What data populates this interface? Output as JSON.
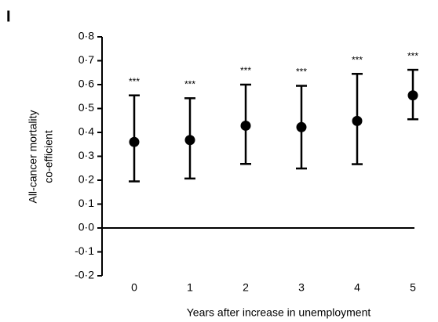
{
  "chart_data": {
    "type": "errorbar",
    "panel_label": "I",
    "ylabel": [
      "All-cancer mortality",
      "co-efficient"
    ],
    "xlabel": "Years after increase in unemployment",
    "categories": [
      "0",
      "1",
      "2",
      "3",
      "4",
      "5"
    ],
    "values": [
      0.36,
      0.368,
      0.428,
      0.422,
      0.448,
      0.555
    ],
    "lower": [
      0.195,
      0.207,
      0.268,
      0.249,
      0.267,
      0.455
    ],
    "upper": [
      0.555,
      0.543,
      0.6,
      0.595,
      0.645,
      0.662
    ],
    "annotations": [
      "***",
      "***",
      "***",
      "***",
      "***",
      "***"
    ],
    "color": "#000000",
    "ylim": [
      -0.2,
      0.8
    ],
    "yticks": [
      {
        "value": -0.2,
        "label": "-0·2"
      },
      {
        "value": -0.1,
        "label": "-0·1"
      },
      {
        "value": 0,
        "label": "0·0"
      },
      {
        "value": 0.1,
        "label": "0·1"
      },
      {
        "value": 0.2,
        "label": "0·2"
      },
      {
        "value": 0.3,
        "label": "0·3"
      },
      {
        "value": 0.4,
        "label": "0·4"
      },
      {
        "value": 0.5,
        "label": "0·5"
      },
      {
        "value": 0.6,
        "label": "0·6"
      },
      {
        "value": 0.7,
        "label": "0·7"
      },
      {
        "value": 0.8,
        "label": "0·8"
      }
    ],
    "zero_line": true
  }
}
